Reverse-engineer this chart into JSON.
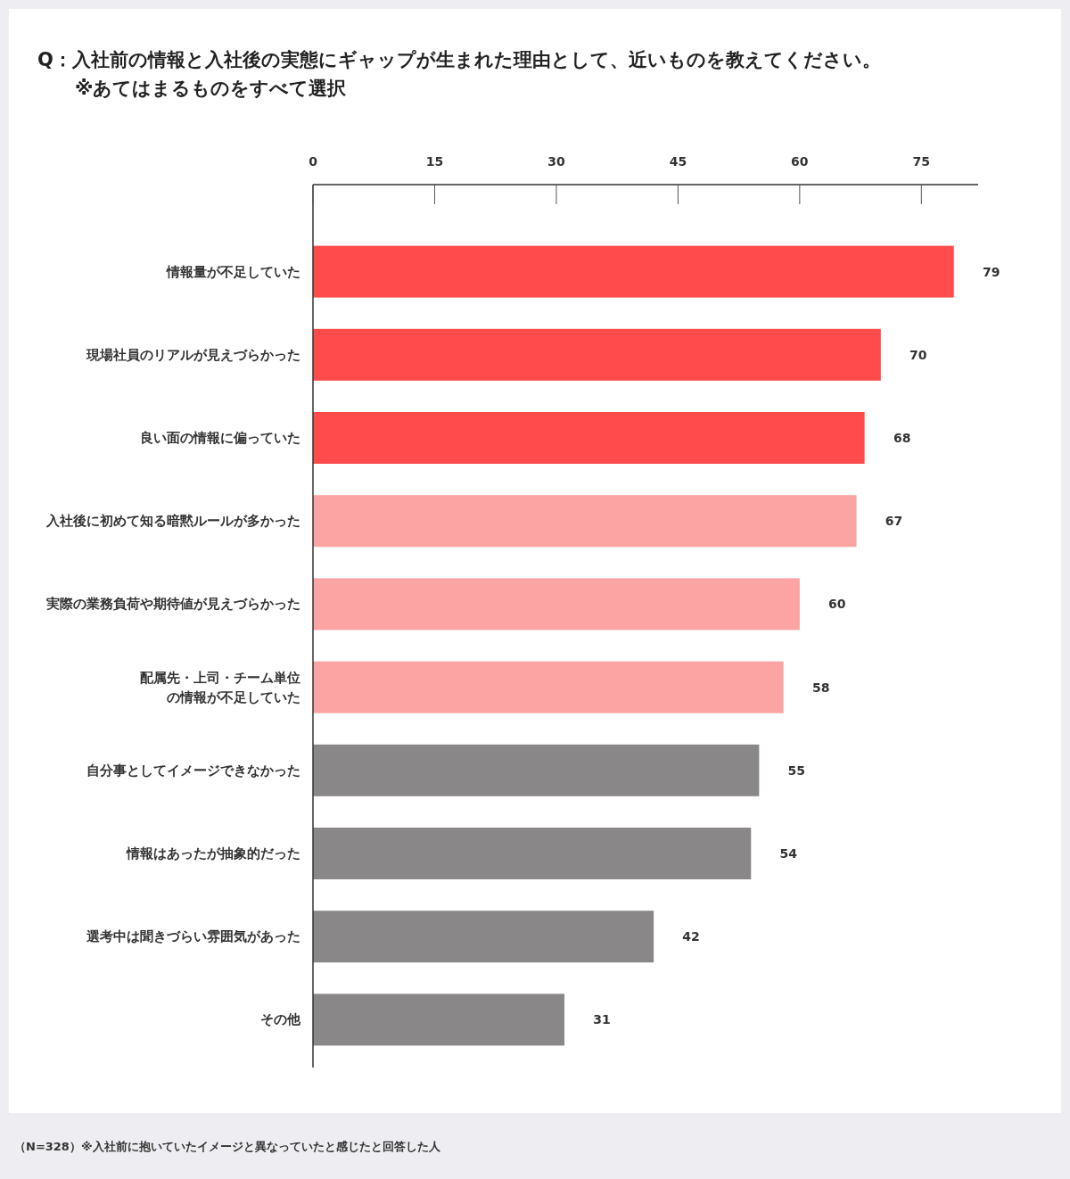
{
  "chart_data": {
    "type": "bar",
    "orientation": "horizontal",
    "title": "Q：入社前の情報と入社後の実態にギャップが生まれた理由として、近いものを教えてください。",
    "subtitle": "※あてはまるものをすべて選択",
    "categories": [
      "情報量が不足していた",
      "現場社員のリアルが見えづらかった",
      "良い面の情報に偏っていた",
      "入社後に初めて知る暗黙ルールが多かった",
      "実際の業務負荷や期待値が見えづらかった",
      "配属先・上司・チーム単位の情報が不足していた",
      "自分事としてイメージできなかった",
      "情報はあったが抽象的だった",
      "選考中は聞きづらい雰囲気があった",
      "その他"
    ],
    "values": [
      79,
      70,
      68,
      67,
      60,
      58,
      55,
      54,
      42,
      31
    ],
    "colors": [
      "#ff4b4b",
      "#ff4b4b",
      "#ff4b4b",
      "#fca3a3",
      "#fca3a3",
      "#fca3a3",
      "#8a8789",
      "#8a8789",
      "#8a8789",
      "#8a8789"
    ],
    "xlim": [
      0,
      82
    ],
    "xticks": [
      0,
      15,
      30,
      45,
      60,
      75
    ],
    "data_labels": true,
    "grid": false,
    "annotations": [
      "（N=328）※入社前に抱いていたイメージと異なっていたと感じたと回答した人"
    ]
  }
}
